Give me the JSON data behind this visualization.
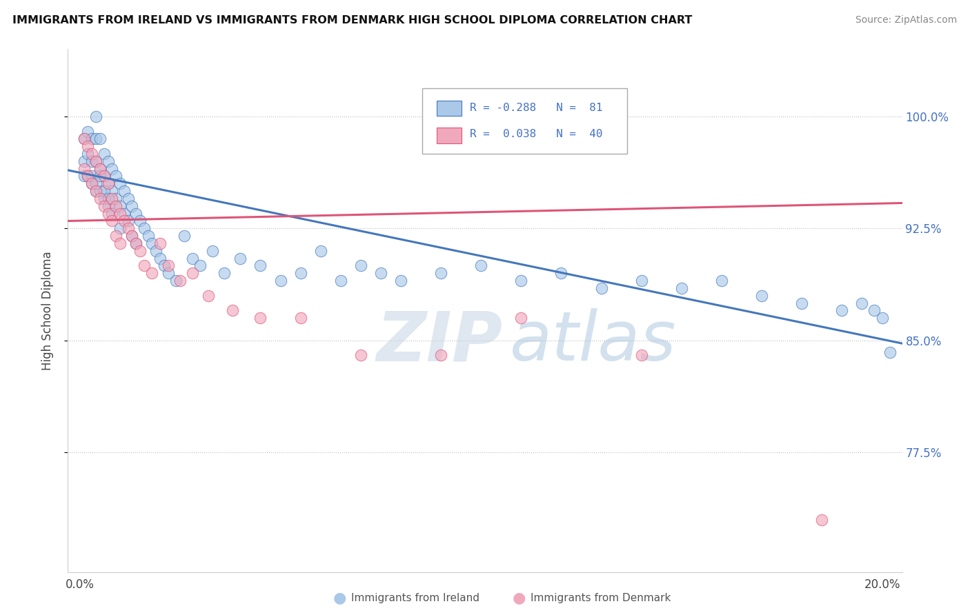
{
  "title": "IMMIGRANTS FROM IRELAND VS IMMIGRANTS FROM DENMARK HIGH SCHOOL DIPLOMA CORRELATION CHART",
  "source": "Source: ZipAtlas.com",
  "ylabel": "High School Diploma",
  "ytick_labels": [
    "100.0%",
    "92.5%",
    "85.0%",
    "77.5%"
  ],
  "ytick_values": [
    1.0,
    0.925,
    0.85,
    0.775
  ],
  "xlim": [
    -0.003,
    0.205
  ],
  "ylim": [
    0.695,
    1.045
  ],
  "color_ireland": "#aac8e8",
  "color_denmark": "#f0a8bc",
  "color_ireland_line": "#4477bb",
  "color_denmark_line": "#dd5577",
  "ireland_line_y0": 0.964,
  "ireland_line_y1": 0.848,
  "denmark_line_y0": 0.93,
  "denmark_line_y1": 0.942,
  "legend_r1": "R = -0.288",
  "legend_n1": "N =  81",
  "legend_r2": "R =  0.038",
  "legend_n2": "N =  40",
  "watermark_zip": "ZIP",
  "watermark_atlas": "atlas",
  "ireland_x": [
    0.001,
    0.001,
    0.001,
    0.002,
    0.002,
    0.002,
    0.003,
    0.003,
    0.003,
    0.004,
    0.004,
    0.004,
    0.004,
    0.005,
    0.005,
    0.005,
    0.006,
    0.006,
    0.006,
    0.007,
    0.007,
    0.007,
    0.008,
    0.008,
    0.008,
    0.009,
    0.009,
    0.01,
    0.01,
    0.01,
    0.011,
    0.011,
    0.012,
    0.012,
    0.013,
    0.013,
    0.014,
    0.014,
    0.015,
    0.016,
    0.017,
    0.018,
    0.019,
    0.02,
    0.021,
    0.022,
    0.024,
    0.026,
    0.028,
    0.03,
    0.033,
    0.036,
    0.04,
    0.045,
    0.05,
    0.055,
    0.06,
    0.065,
    0.07,
    0.075,
    0.08,
    0.09,
    0.1,
    0.11,
    0.12,
    0.13,
    0.14,
    0.15,
    0.16,
    0.17,
    0.18,
    0.19,
    0.195,
    0.198,
    0.2,
    0.202,
    0.003,
    0.004,
    0.005,
    0.006,
    0.007
  ],
  "ireland_y": [
    0.985,
    0.97,
    0.96,
    0.99,
    0.975,
    0.96,
    0.985,
    0.97,
    0.955,
    1.0,
    0.985,
    0.97,
    0.95,
    0.985,
    0.965,
    0.95,
    0.975,
    0.96,
    0.945,
    0.97,
    0.955,
    0.94,
    0.965,
    0.95,
    0.935,
    0.96,
    0.945,
    0.955,
    0.94,
    0.925,
    0.95,
    0.935,
    0.945,
    0.93,
    0.94,
    0.92,
    0.935,
    0.915,
    0.93,
    0.925,
    0.92,
    0.915,
    0.91,
    0.905,
    0.9,
    0.895,
    0.89,
    0.92,
    0.905,
    0.9,
    0.91,
    0.895,
    0.905,
    0.9,
    0.89,
    0.895,
    0.91,
    0.89,
    0.9,
    0.895,
    0.89,
    0.895,
    0.9,
    0.89,
    0.895,
    0.885,
    0.89,
    0.885,
    0.89,
    0.88,
    0.875,
    0.87,
    0.875,
    0.87,
    0.865,
    0.842,
    0.96,
    0.955,
    0.96,
    0.95,
    0.945
  ],
  "denmark_x": [
    0.001,
    0.001,
    0.002,
    0.002,
    0.003,
    0.003,
    0.004,
    0.004,
    0.005,
    0.005,
    0.006,
    0.006,
    0.007,
    0.007,
    0.008,
    0.008,
    0.009,
    0.009,
    0.01,
    0.01,
    0.011,
    0.012,
    0.013,
    0.014,
    0.015,
    0.016,
    0.018,
    0.02,
    0.022,
    0.025,
    0.028,
    0.032,
    0.038,
    0.045,
    0.055,
    0.07,
    0.09,
    0.11,
    0.14,
    0.185
  ],
  "denmark_y": [
    0.985,
    0.965,
    0.98,
    0.96,
    0.975,
    0.955,
    0.97,
    0.95,
    0.965,
    0.945,
    0.96,
    0.94,
    0.955,
    0.935,
    0.945,
    0.93,
    0.94,
    0.92,
    0.935,
    0.915,
    0.93,
    0.925,
    0.92,
    0.915,
    0.91,
    0.9,
    0.895,
    0.915,
    0.9,
    0.89,
    0.895,
    0.88,
    0.87,
    0.865,
    0.865,
    0.84,
    0.84,
    0.865,
    0.84,
    0.73
  ]
}
